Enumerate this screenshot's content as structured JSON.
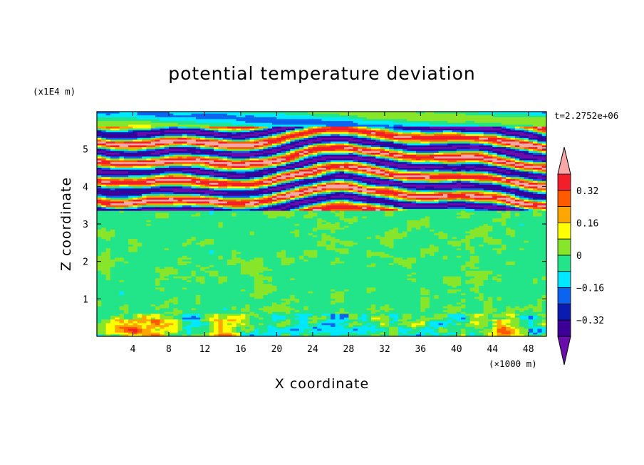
{
  "chart_data": {
    "type": "heatmap",
    "title": "potential temperature deviation",
    "xlabel": "X coordinate",
    "ylabel": "Z coordinate",
    "x_unit": "(×1000 m)",
    "y_unit": "(x1E4 m)",
    "time_label": "t=2.2752e+06",
    "xlim": [
      0,
      50
    ],
    "ylim": [
      0,
      6
    ],
    "x_ticks": [
      4,
      8,
      12,
      16,
      20,
      24,
      28,
      32,
      36,
      40,
      44,
      48
    ],
    "y_ticks": [
      1,
      2,
      3,
      4,
      5
    ],
    "colorbar": {
      "levels": [
        -0.4,
        -0.32,
        -0.24,
        -0.16,
        -0.08,
        0,
        0.08,
        0.16,
        0.24,
        0.32,
        0.4
      ],
      "tick_labels": [
        "0.32",
        "0.16",
        "0",
        "−0.16",
        "−0.32"
      ],
      "tick_values": [
        0.32,
        0.16,
        0,
        -0.16,
        -0.32
      ],
      "colors_low_to_high": [
        "#6a0dad",
        "#3c0099",
        "#0a1bb0",
        "#0a64f0",
        "#00e8ff",
        "#22e58a",
        "#88e62a",
        "#ffff00",
        "#ffa500",
        "#ff5a00",
        "#f21f2a",
        "#f7a7a7"
      ]
    },
    "bands": [
      {
        "z_from": 0.0,
        "z_to": 0.6,
        "character": "near-surface mixed warm/cold anomalies"
      },
      {
        "z_from": 0.6,
        "z_to": 3.3,
        "character": "weak anomalies around 0"
      },
      {
        "z_from": 3.3,
        "z_to": 5.6,
        "character": "strong alternating warm/cold layers"
      },
      {
        "z_from": 5.6,
        "z_to": 6.0,
        "character": "weak anomalies around 0"
      }
    ]
  }
}
